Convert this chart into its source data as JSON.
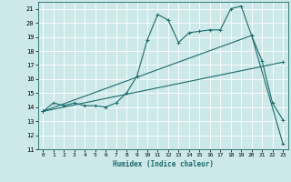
{
  "xlabel": "Humidex (Indice chaleur)",
  "xlim": [
    -0.5,
    23.5
  ],
  "ylim": [
    11,
    21.5
  ],
  "yticks": [
    11,
    12,
    13,
    14,
    15,
    16,
    17,
    18,
    19,
    20,
    21
  ],
  "xticks": [
    0,
    1,
    2,
    3,
    4,
    5,
    6,
    7,
    8,
    9,
    10,
    11,
    12,
    13,
    14,
    15,
    16,
    17,
    18,
    19,
    20,
    21,
    22,
    23
  ],
  "bg_color": "#cde8e8",
  "grid_color": "#ffffff",
  "line_color": "#1a6b6b",
  "line1": {
    "x": [
      0,
      1,
      2,
      3,
      4,
      5,
      6,
      7,
      8,
      9,
      10,
      11,
      12,
      13,
      14,
      15,
      16,
      17,
      18,
      19,
      20,
      21,
      22,
      23
    ],
    "y": [
      13.7,
      14.3,
      14.1,
      14.3,
      14.1,
      14.1,
      14.0,
      14.3,
      15.0,
      16.2,
      18.8,
      20.6,
      20.2,
      18.6,
      19.3,
      19.4,
      19.5,
      19.5,
      21.0,
      21.2,
      19.1,
      17.3,
      14.3,
      13.1
    ]
  },
  "line2": {
    "x": [
      0,
      20,
      23
    ],
    "y": [
      13.7,
      19.1,
      11.4
    ]
  },
  "line3": {
    "x": [
      0,
      23
    ],
    "y": [
      13.7,
      17.2
    ]
  }
}
